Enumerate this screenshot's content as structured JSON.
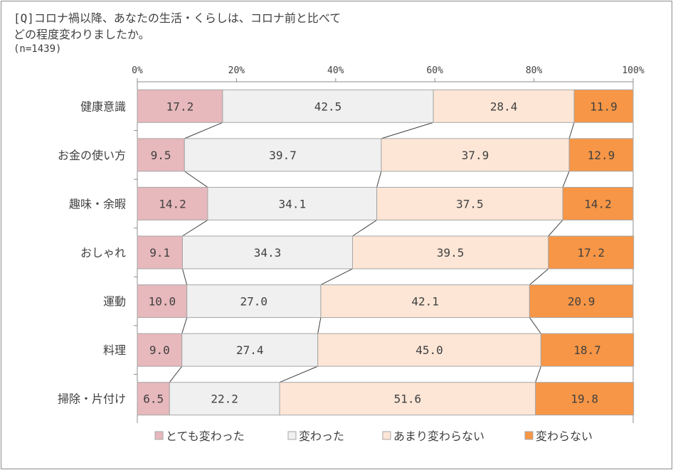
{
  "question": {
    "line1": "[Q]コロナ禍以降、あなたの生活・くらしは、コロナ前と比べて",
    "line2": "どの程度変わりましたか。",
    "sample": "(n=1439)"
  },
  "colors": {
    "series": [
      "#e7b8bc",
      "#f0f0f0",
      "#fde6d6",
      "#f79646"
    ],
    "bar_border": "#a6a6a6",
    "axis": "#8c8c8c",
    "connector": "#404040",
    "text": "#404040"
  },
  "chart_data": {
    "type": "bar",
    "orientation": "horizontal",
    "stacked": "percent",
    "title": "",
    "xlabel": "",
    "ylabel": "",
    "xlim": [
      0,
      100
    ],
    "x_ticks": [
      "0%",
      "20%",
      "40%",
      "60%",
      "80%",
      "100%"
    ],
    "x_tick_values": [
      0,
      20,
      40,
      60,
      80,
      100
    ],
    "categories": [
      "健康意識",
      "お金の使い方",
      "趣味・余暇",
      "おしゃれ",
      "運動",
      "料理",
      "掃除・片付け"
    ],
    "series": [
      {
        "name": "とても変わった",
        "values": [
          17.2,
          9.5,
          14.2,
          9.1,
          10.0,
          9.0,
          6.5
        ]
      },
      {
        "name": "変わった",
        "values": [
          42.5,
          39.7,
          34.1,
          34.3,
          27.0,
          27.4,
          22.2
        ]
      },
      {
        "name": "あまり変わらない",
        "values": [
          28.4,
          37.9,
          37.5,
          39.5,
          42.1,
          45.0,
          51.6
        ]
      },
      {
        "name": "変わらない",
        "values": [
          11.9,
          12.9,
          14.2,
          17.2,
          20.9,
          18.7,
          19.8
        ]
      }
    ],
    "data_labels": [
      [
        "17.2",
        "9.5",
        "14.2",
        "9.1",
        "10.0",
        "9.0",
        "6.5"
      ],
      [
        "42.5",
        "39.7",
        "34.1",
        "34.3",
        "27.0",
        "27.4",
        "22.2"
      ],
      [
        "28.4",
        "37.9",
        "37.5",
        "39.5",
        "42.1",
        "45.0",
        "51.6"
      ],
      [
        "11.9",
        "12.9",
        "14.2",
        "17.2",
        "20.9",
        "18.7",
        "19.8"
      ]
    ],
    "series_lines": true,
    "grid": false,
    "legend_position": "bottom"
  }
}
